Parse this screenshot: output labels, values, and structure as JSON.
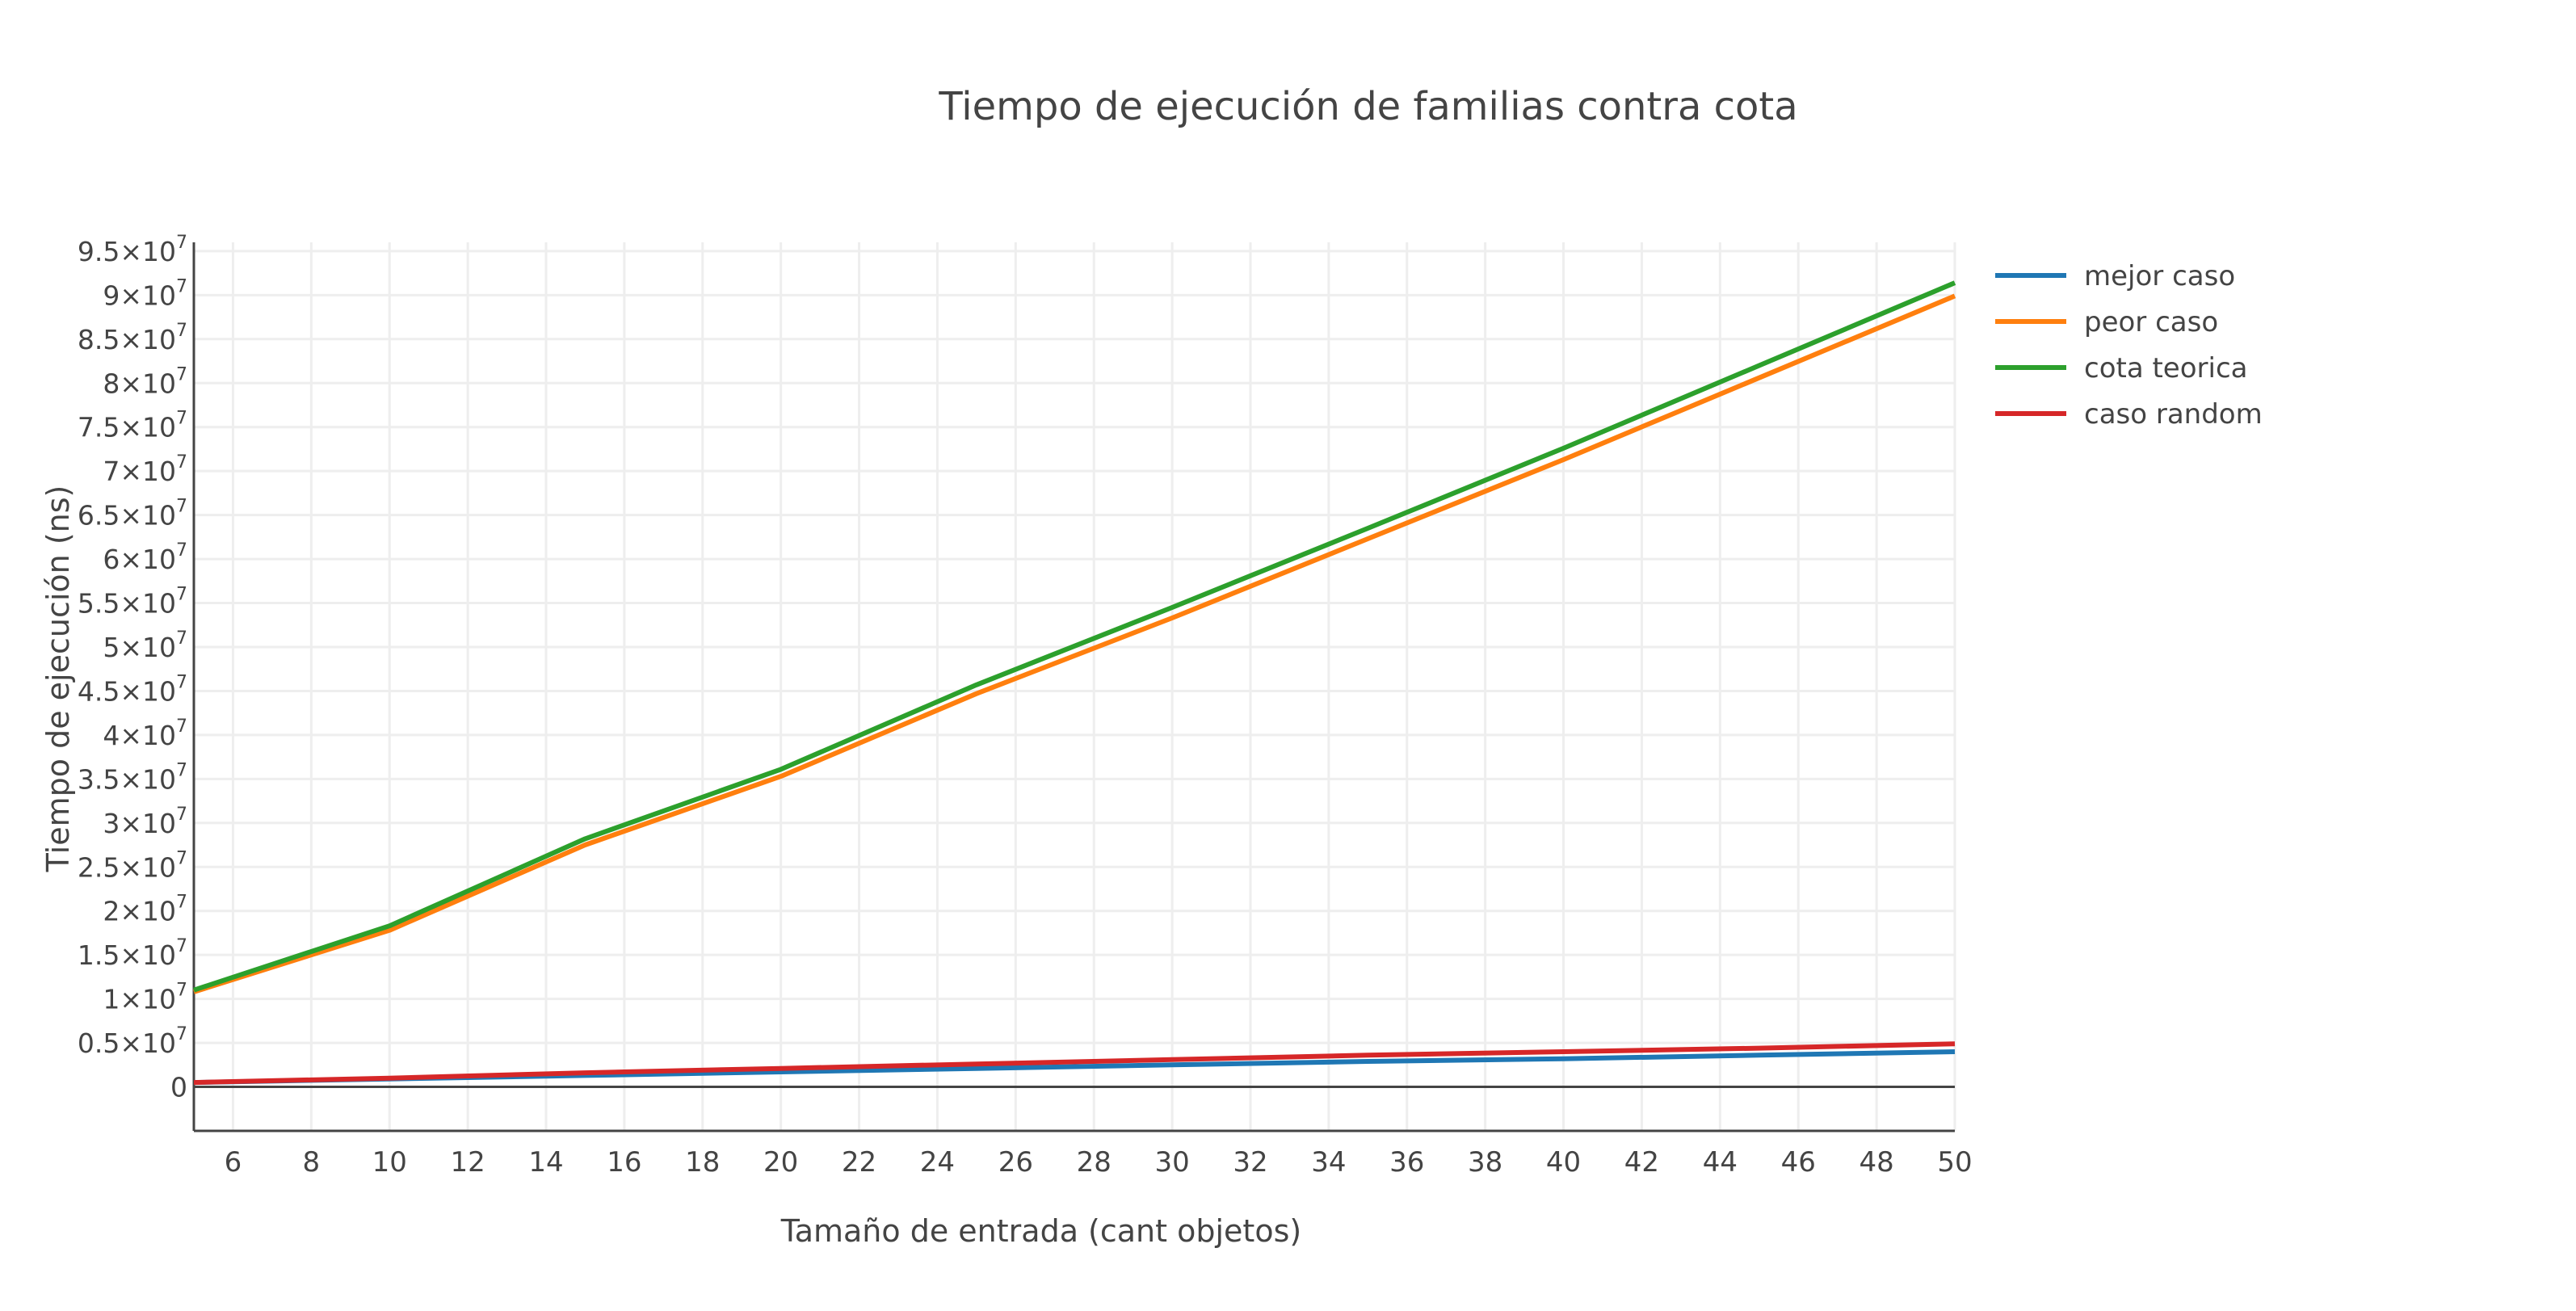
{
  "chart_data": {
    "type": "line",
    "title": "Tiempo de ejecución de familias contra cota",
    "xlabel": "Tamaño de entrada (cant objetos)",
    "ylabel": "Tiempo de ejecución (ns)",
    "xlim": [
      5,
      50
    ],
    "ylim": [
      -5000000,
      96000000
    ],
    "x_ticks": [
      6,
      8,
      10,
      12,
      14,
      16,
      18,
      20,
      22,
      24,
      26,
      28,
      30,
      32,
      34,
      36,
      38,
      40,
      42,
      44,
      46,
      48,
      50
    ],
    "y_ticks": [
      {
        "value": 0,
        "mantissa": "0",
        "exponent": ""
      },
      {
        "value": 5000000,
        "mantissa": "0.5×10",
        "exponent": "7"
      },
      {
        "value": 10000000,
        "mantissa": "1×10",
        "exponent": "7"
      },
      {
        "value": 15000000,
        "mantissa": "1.5×10",
        "exponent": "7"
      },
      {
        "value": 20000000,
        "mantissa": "2×10",
        "exponent": "7"
      },
      {
        "value": 25000000,
        "mantissa": "2.5×10",
        "exponent": "7"
      },
      {
        "value": 30000000,
        "mantissa": "3×10",
        "exponent": "7"
      },
      {
        "value": 35000000,
        "mantissa": "3.5×10",
        "exponent": "7"
      },
      {
        "value": 40000000,
        "mantissa": "4×10",
        "exponent": "7"
      },
      {
        "value": 45000000,
        "mantissa": "4.5×10",
        "exponent": "7"
      },
      {
        "value": 50000000,
        "mantissa": "5×10",
        "exponent": "7"
      },
      {
        "value": 55000000,
        "mantissa": "5.5×10",
        "exponent": "7"
      },
      {
        "value": 60000000,
        "mantissa": "6×10",
        "exponent": "7"
      },
      {
        "value": 65000000,
        "mantissa": "6.5×10",
        "exponent": "7"
      },
      {
        "value": 70000000,
        "mantissa": "7×10",
        "exponent": "7"
      },
      {
        "value": 75000000,
        "mantissa": "7.5×10",
        "exponent": "7"
      },
      {
        "value": 80000000,
        "mantissa": "8×10",
        "exponent": "7"
      },
      {
        "value": 85000000,
        "mantissa": "8.5×10",
        "exponent": "7"
      },
      {
        "value": 90000000,
        "mantissa": "9×10",
        "exponent": "7"
      },
      {
        "value": 95000000,
        "mantissa": "9.5×10",
        "exponent": "7"
      }
    ],
    "grid": true,
    "legend_position": "top-right",
    "series": [
      {
        "name": "mejor caso",
        "color": "#1f77b4",
        "x": [
          5,
          10,
          15,
          20,
          25,
          30,
          35,
          40,
          45,
          50
        ],
        "y": [
          500000,
          900000,
          1300000,
          1700000,
          2100000,
          2500000,
          2900000,
          3200000,
          3600000,
          4000000
        ]
      },
      {
        "name": "peor caso",
        "color": "#ff7f0e",
        "x": [
          5,
          10,
          15,
          20,
          25,
          30,
          35,
          40,
          45,
          50
        ],
        "y": [
          10800000,
          17800000,
          27500000,
          35300000,
          44700000,
          53300000,
          62300000,
          71300000,
          80600000,
          89900000
        ]
      },
      {
        "name": "cota teorica",
        "color": "#2ca02c",
        "x": [
          5,
          10,
          15,
          20,
          25,
          30,
          35,
          40,
          45,
          50
        ],
        "y": [
          11000000,
          18300000,
          28200000,
          36100000,
          45700000,
          54500000,
          63500000,
          72600000,
          82000000,
          91400000
        ]
      },
      {
        "name": "caso random",
        "color": "#d62728",
        "x": [
          5,
          10,
          15,
          20,
          25,
          30,
          35,
          40,
          45,
          50
        ],
        "y": [
          500000,
          1000000,
          1600000,
          2100000,
          2600000,
          3100000,
          3600000,
          4000000,
          4400000,
          4900000
        ]
      }
    ]
  }
}
